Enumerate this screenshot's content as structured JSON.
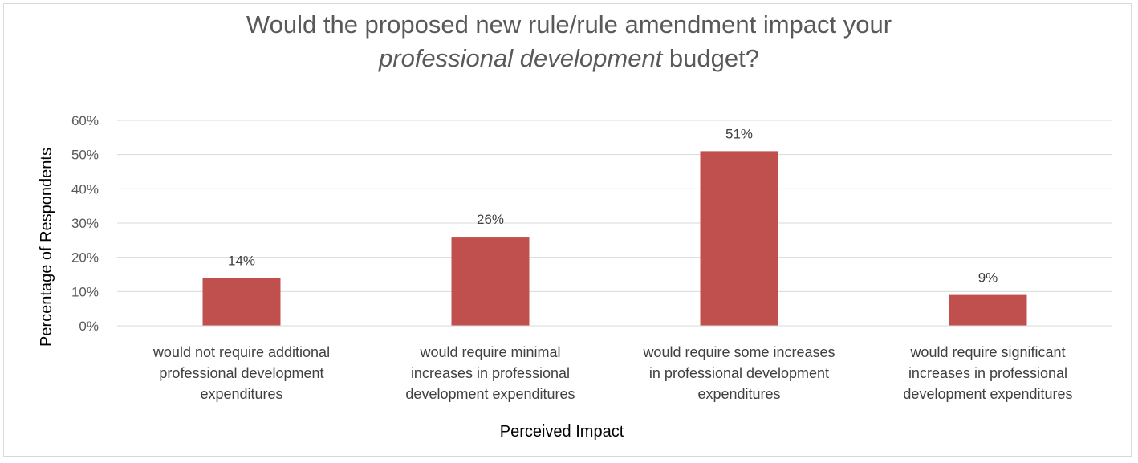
{
  "chart_data": {
    "type": "bar",
    "title_line1": "Would the proposed new rule/rule amendment impact your",
    "title_line2_italic": "professional development",
    "title_line2_rest": " budget?",
    "xlabel": "Perceived Impact",
    "ylabel": "Percentage of Respondents",
    "ylim": [
      0,
      60
    ],
    "yticks": [
      "0%",
      "10%",
      "20%",
      "30%",
      "40%",
      "50%",
      "60%"
    ],
    "categories": [
      [
        "would not require additional",
        "professional development",
        "expenditures"
      ],
      [
        "would require minimal",
        "increases in professional",
        "development expenditures"
      ],
      [
        "would require some increases",
        "in professional development",
        "expenditures"
      ],
      [
        "would require significant",
        "increases in professional",
        "development expenditures"
      ]
    ],
    "values": [
      14,
      26,
      51,
      9
    ],
    "data_labels": [
      "14%",
      "26%",
      "51%",
      "9%"
    ],
    "bar_color": "#c0504d",
    "grid": true,
    "legend": "none"
  }
}
